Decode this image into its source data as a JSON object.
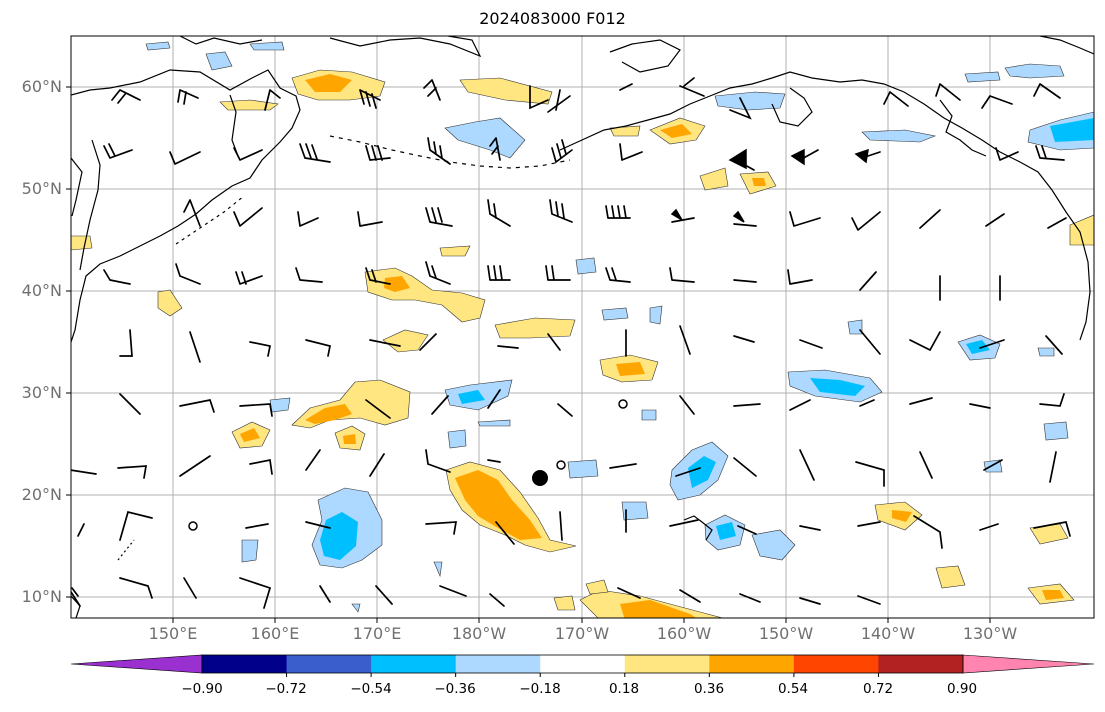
{
  "title": "2024083000 F012",
  "lat_labels": [
    "60°N",
    "50°N",
    "40°N",
    "30°N",
    "20°N",
    "10°N"
  ],
  "lon_labels": [
    "150°E",
    "160°E",
    "170°E",
    "180°W",
    "170°W",
    "160°W",
    "150°W",
    "140°W",
    "130°W"
  ],
  "colorbar": {
    "colors": [
      "#9b30d0",
      "#00008b",
      "#3a5fcd",
      "#00bfff",
      "#add8ff",
      "#ffffff",
      "#ffe680",
      "#ffa500",
      "#ff4500",
      "#b22222",
      "#ff85b0"
    ],
    "tick_labels": [
      "−0.90",
      "−0.72",
      "−0.54",
      "−0.36",
      "−0.18",
      "0.18",
      "0.36",
      "0.54",
      "0.72",
      "0.90"
    ]
  }
}
